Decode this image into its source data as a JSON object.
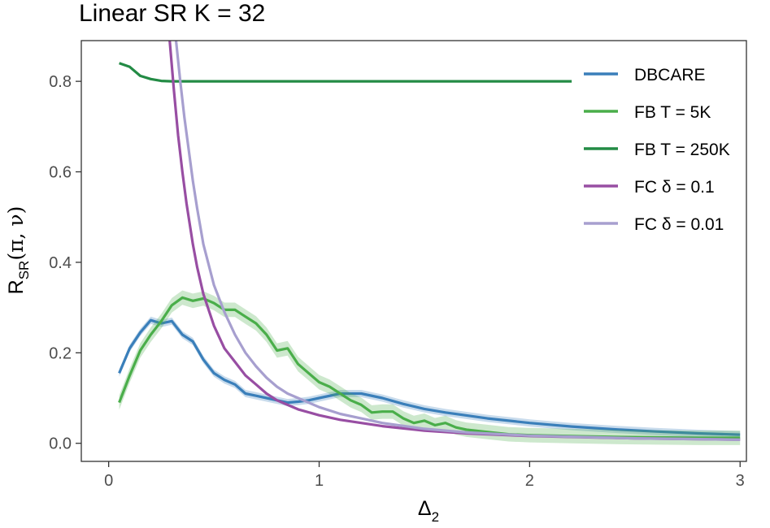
{
  "chart_data": {
    "type": "line",
    "title": "Linear SR K = 32",
    "xlabel": "Δ",
    "xlabel_subscript": "2",
    "ylabel": "R",
    "ylabel_subscript": "SR",
    "ylabel_suffix": "(π, ν)",
    "xlim": [
      -0.13,
      3.03
    ],
    "ylim": [
      -0.04,
      0.89
    ],
    "x_ticks": [
      0,
      1,
      2,
      3
    ],
    "x_tick_labels": [
      "0",
      "1",
      "2",
      "3"
    ],
    "y_ticks": [
      0.0,
      0.2,
      0.4,
      0.6,
      0.8
    ],
    "y_tick_labels": [
      "0.0",
      "0.2",
      "0.4",
      "0.6",
      "0.8"
    ],
    "grid": false,
    "legend_position": "top-right",
    "series": [
      {
        "name": "DBCARE",
        "color": "#3a7fba",
        "band": 0.008,
        "x": [
          0.05,
          0.1,
          0.15,
          0.2,
          0.25,
          0.3,
          0.35,
          0.4,
          0.45,
          0.5,
          0.55,
          0.6,
          0.65,
          0.7,
          0.75,
          0.8,
          0.85,
          0.9,
          0.95,
          1.0,
          1.1,
          1.2,
          1.3,
          1.4,
          1.5,
          1.6,
          1.8,
          2.0,
          2.2,
          2.4,
          2.6,
          2.8,
          3.0
        ],
        "y": [
          0.155,
          0.21,
          0.245,
          0.272,
          0.265,
          0.27,
          0.24,
          0.225,
          0.185,
          0.155,
          0.14,
          0.13,
          0.11,
          0.105,
          0.1,
          0.095,
          0.09,
          0.092,
          0.095,
          0.1,
          0.11,
          0.11,
          0.1,
          0.087,
          0.076,
          0.068,
          0.055,
          0.045,
          0.037,
          0.031,
          0.026,
          0.022,
          0.019
        ]
      },
      {
        "name": "FB T = 5K",
        "color": "#4aae4a",
        "band": 0.016,
        "x": [
          0.05,
          0.1,
          0.15,
          0.2,
          0.25,
          0.3,
          0.35,
          0.4,
          0.45,
          0.5,
          0.55,
          0.6,
          0.65,
          0.7,
          0.75,
          0.8,
          0.85,
          0.9,
          0.95,
          1.0,
          1.05,
          1.1,
          1.15,
          1.2,
          1.25,
          1.3,
          1.35,
          1.4,
          1.45,
          1.5,
          1.55,
          1.6,
          1.65,
          1.7,
          1.8,
          1.9,
          2.0,
          2.2,
          2.4,
          2.6,
          2.8,
          3.0
        ],
        "y": [
          0.09,
          0.15,
          0.205,
          0.24,
          0.27,
          0.305,
          0.322,
          0.315,
          0.32,
          0.31,
          0.295,
          0.295,
          0.28,
          0.265,
          0.24,
          0.205,
          0.21,
          0.175,
          0.155,
          0.135,
          0.125,
          0.11,
          0.095,
          0.085,
          0.068,
          0.07,
          0.07,
          0.055,
          0.045,
          0.05,
          0.04,
          0.045,
          0.035,
          0.03,
          0.025,
          0.02,
          0.018,
          0.016,
          0.014,
          0.013,
          0.012,
          0.012
        ]
      },
      {
        "name": "FB T = 250K",
        "color": "#238b45",
        "band": 0.0,
        "x": [
          0.05,
          0.1,
          0.15,
          0.2,
          0.25,
          0.3,
          0.4,
          0.5,
          0.7,
          1.0,
          1.5,
          2.0,
          2.2
        ],
        "y": [
          0.84,
          0.832,
          0.812,
          0.805,
          0.801,
          0.8,
          0.8,
          0.8,
          0.8,
          0.8,
          0.8,
          0.8,
          0.8
        ]
      },
      {
        "name": "FC δ = 0.1",
        "color": "#984ea3",
        "band": 0.0,
        "x": [
          0.29,
          0.31,
          0.33,
          0.35,
          0.37,
          0.4,
          0.42,
          0.45,
          0.5,
          0.55,
          0.6,
          0.65,
          0.7,
          0.75,
          0.8,
          0.85,
          0.9,
          1.0,
          1.1,
          1.2,
          1.3,
          1.5,
          1.7,
          2.0,
          2.5,
          3.0
        ],
        "y": [
          0.89,
          0.78,
          0.68,
          0.6,
          0.53,
          0.44,
          0.39,
          0.33,
          0.26,
          0.21,
          0.18,
          0.15,
          0.13,
          0.11,
          0.095,
          0.085,
          0.075,
          0.062,
          0.052,
          0.045,
          0.038,
          0.028,
          0.022,
          0.016,
          0.011,
          0.008
        ]
      },
      {
        "name": "FC δ = 0.01",
        "color": "#a79fcf",
        "band": 0.0,
        "x": [
          0.32,
          0.34,
          0.36,
          0.38,
          0.4,
          0.42,
          0.45,
          0.5,
          0.55,
          0.6,
          0.65,
          0.7,
          0.75,
          0.8,
          0.85,
          0.9,
          1.0,
          1.1,
          1.2,
          1.3,
          1.5,
          1.7,
          2.0,
          2.5,
          3.0
        ],
        "y": [
          0.89,
          0.8,
          0.72,
          0.65,
          0.58,
          0.52,
          0.44,
          0.35,
          0.29,
          0.24,
          0.2,
          0.17,
          0.145,
          0.125,
          0.11,
          0.1,
          0.08,
          0.065,
          0.055,
          0.045,
          0.032,
          0.024,
          0.017,
          0.011,
          0.008
        ]
      }
    ]
  }
}
